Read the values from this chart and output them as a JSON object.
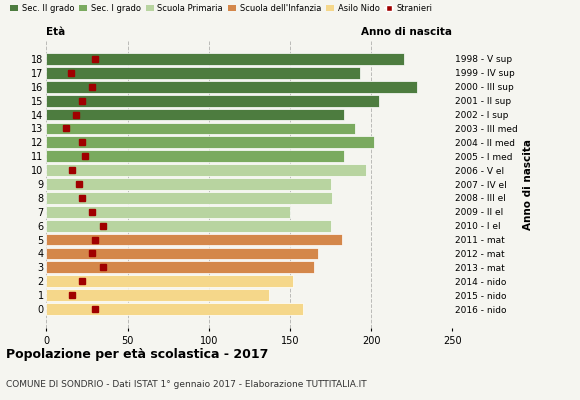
{
  "ages": [
    18,
    17,
    16,
    15,
    14,
    13,
    12,
    11,
    10,
    9,
    8,
    7,
    6,
    5,
    4,
    3,
    2,
    1,
    0
  ],
  "bar_values": [
    220,
    193,
    228,
    205,
    183,
    190,
    202,
    183,
    197,
    175,
    176,
    150,
    175,
    182,
    167,
    165,
    152,
    137,
    158
  ],
  "stranieri": [
    30,
    15,
    28,
    22,
    18,
    12,
    22,
    24,
    16,
    20,
    22,
    28,
    35,
    30,
    28,
    35,
    22,
    16,
    30
  ],
  "right_labels": [
    "1998 - V sup",
    "1999 - IV sup",
    "2000 - III sup",
    "2001 - II sup",
    "2002 - I sup",
    "2003 - III med",
    "2004 - II med",
    "2005 - I med",
    "2006 - V el",
    "2007 - IV el",
    "2008 - III el",
    "2009 - II el",
    "2010 - I el",
    "2011 - mat",
    "2012 - mat",
    "2013 - mat",
    "2014 - nido",
    "2015 - nido",
    "2016 - nido"
  ],
  "bar_colors": [
    "#4d7c3f",
    "#4d7c3f",
    "#4d7c3f",
    "#4d7c3f",
    "#4d7c3f",
    "#7aaa5f",
    "#7aaa5f",
    "#7aaa5f",
    "#b8d4a0",
    "#b8d4a0",
    "#b8d4a0",
    "#b8d4a0",
    "#b8d4a0",
    "#d4874a",
    "#d4874a",
    "#d4874a",
    "#f5d78a",
    "#f5d78a",
    "#f5d78a"
  ],
  "legend_labels": [
    "Sec. II grado",
    "Sec. I grado",
    "Scuola Primaria",
    "Scuola dell'Infanzia",
    "Asilo Nido",
    "Stranieri"
  ],
  "legend_colors": [
    "#4d7c3f",
    "#7aaa5f",
    "#b8d4a0",
    "#d4874a",
    "#f5d78a",
    "#a00000"
  ],
  "title": "Popolazione per età scolastica - 2017",
  "subtitle": "COMUNE DI SONDRIO - Dati ISTAT 1° gennaio 2017 - Elaborazione TUTTITALIA.IT",
  "xlabel_eta": "Età",
  "xlabel_anno": "Anno di nascita",
  "xlim": [
    0,
    250
  ],
  "xticks": [
    0,
    50,
    100,
    150,
    200,
    250
  ],
  "bg_color": "#f5f5f0",
  "stranieri_color": "#a00000"
}
